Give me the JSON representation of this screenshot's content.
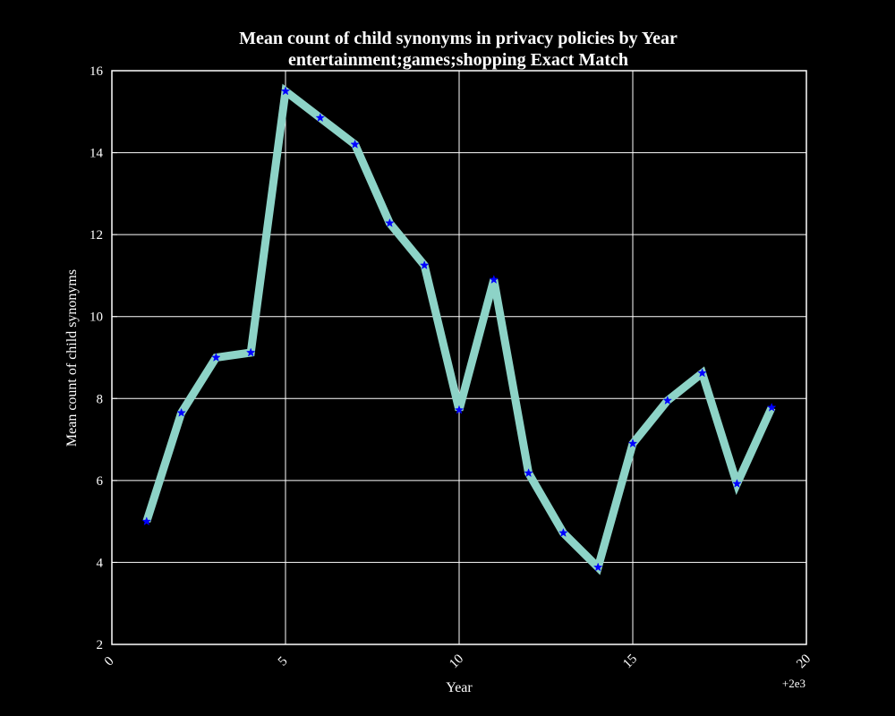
{
  "chart_data": {
    "type": "line",
    "title": "Mean count of child synonyms in privacy policies by Year",
    "subtitle": "entertainment;games;shopping Exact Match",
    "xlabel": "Year",
    "ylabel": "Mean count of child synonyms",
    "x_offset_label": "+2e3",
    "xlim": [
      0,
      20
    ],
    "ylim": [
      2,
      16
    ],
    "x_ticks": [
      0,
      5,
      10,
      15,
      20
    ],
    "y_ticks": [
      2,
      4,
      6,
      8,
      10,
      12,
      14,
      16
    ],
    "grid": true,
    "legend": "none",
    "colors": {
      "background": "#000000",
      "axes": "#ffffff",
      "grid": "#ffffff",
      "line": "#8dd3c7",
      "marker": "#0000ff"
    },
    "x": [
      1,
      2,
      3,
      4,
      5,
      6,
      7,
      8,
      9,
      10,
      11,
      12,
      13,
      14,
      15,
      16,
      17,
      18,
      19
    ],
    "series": [
      {
        "values": [
          5.0,
          7.65,
          9.0,
          9.12,
          15.5,
          14.85,
          14.2,
          12.28,
          11.25,
          7.72,
          10.9,
          6.18,
          4.72,
          3.88,
          6.9,
          7.95,
          8.62,
          5.92,
          7.78
        ]
      }
    ]
  }
}
